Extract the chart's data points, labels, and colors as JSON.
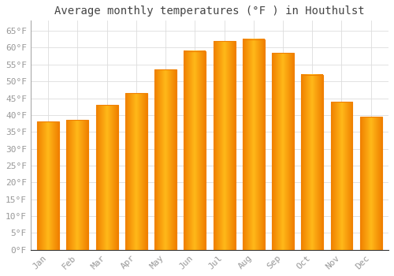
{
  "title": "Average monthly temperatures (°F ) in Houthulst",
  "months": [
    "Jan",
    "Feb",
    "Mar",
    "Apr",
    "May",
    "Jun",
    "Jul",
    "Aug",
    "Sep",
    "Oct",
    "Nov",
    "Dec"
  ],
  "values": [
    38,
    38.5,
    43,
    46.5,
    53.5,
    59,
    62,
    62.5,
    58.5,
    52,
    44,
    39.5
  ],
  "bar_color_center": "#FFB819",
  "bar_color_edge": "#F08000",
  "background_color": "#FFFFFF",
  "grid_color": "#DDDDDD",
  "tick_label_color": "#999999",
  "title_color": "#444444",
  "ylim": [
    0,
    68
  ],
  "yticks": [
    0,
    5,
    10,
    15,
    20,
    25,
    30,
    35,
    40,
    45,
    50,
    55,
    60,
    65
  ],
  "ytick_labels": [
    "0°F",
    "5°F",
    "10°F",
    "15°F",
    "20°F",
    "25°F",
    "30°F",
    "35°F",
    "40°F",
    "45°F",
    "50°F",
    "55°F",
    "60°F",
    "65°F"
  ],
  "title_fontsize": 10,
  "tick_fontsize": 8
}
